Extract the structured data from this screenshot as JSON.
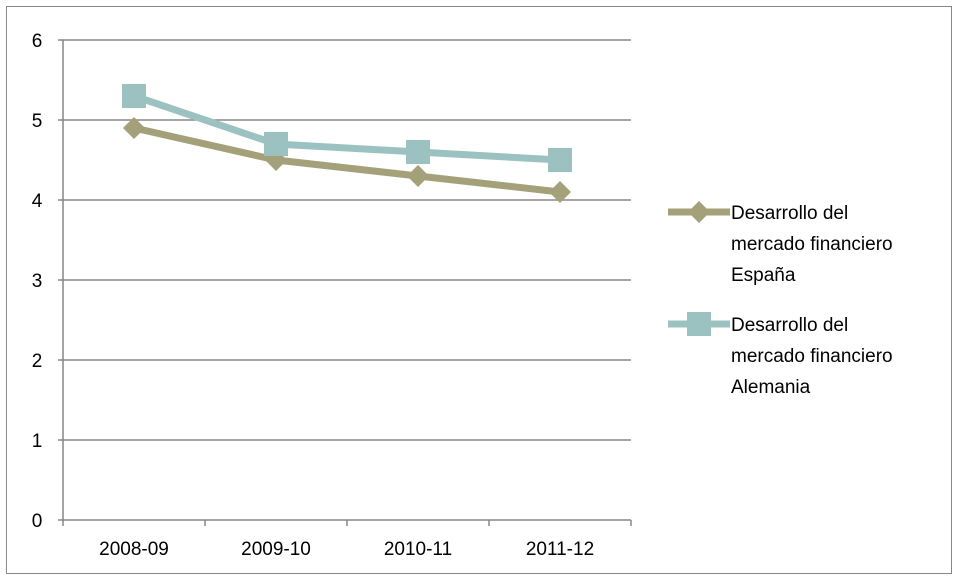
{
  "chart_data": {
    "type": "line",
    "title": "",
    "xlabel": "",
    "ylabel": "",
    "categories": [
      "2008-09",
      "2009-10",
      "2010-11",
      "2011-12"
    ],
    "ylim": [
      0,
      6
    ],
    "yticks": [
      "0",
      "1",
      "2",
      "3",
      "4",
      "5",
      "6"
    ],
    "grid": true,
    "legend_position": "right",
    "series": [
      {
        "name_lines": [
          "Desarrollo del",
          "mercado financiero",
          "España"
        ],
        "values": [
          4.9,
          4.5,
          4.3,
          4.1
        ],
        "marker": "diamond",
        "color": "#a3a07a"
      },
      {
        "name_lines": [
          "Desarrollo del",
          "mercado financiero",
          "Alemania"
        ],
        "values": [
          5.3,
          4.7,
          4.6,
          4.5
        ],
        "marker": "square",
        "color": "#9cc1c1"
      }
    ]
  }
}
